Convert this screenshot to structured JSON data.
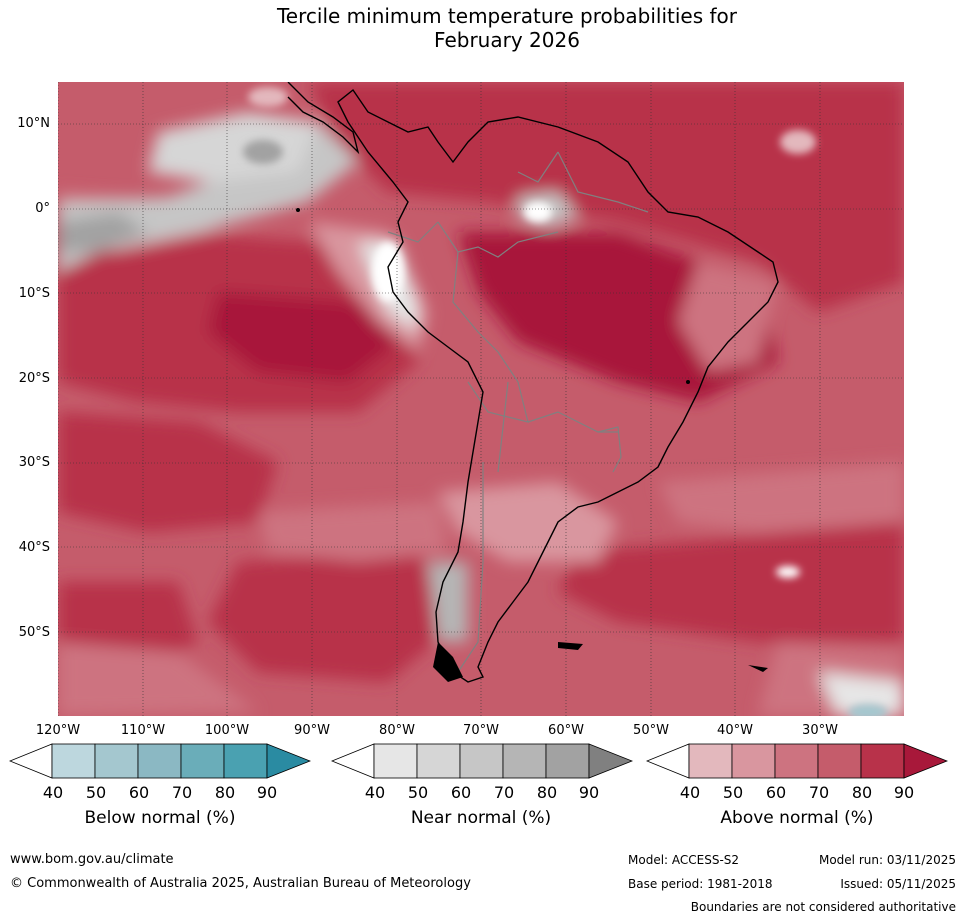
{
  "title": {
    "line1": "Tercile minimum temperature probabilities for",
    "line2": "February 2026"
  },
  "map": {
    "lat_labels": [
      "10°N",
      "0°",
      "10°S",
      "20°S",
      "30°S",
      "40°S",
      "50°S"
    ],
    "lon_labels": [
      "120°W",
      "110°W",
      "100°W",
      "90°W",
      "80°W",
      "70°W",
      "60°W",
      "50°W",
      "40°W",
      "30°W"
    ]
  },
  "legend": {
    "below": {
      "title": "Below normal (%)",
      "ticks": [
        "40",
        "50",
        "60",
        "70",
        "80",
        "90"
      ],
      "colors": [
        "#ffffff",
        "#bdd7de",
        "#a4c7cf",
        "#8bb8c3",
        "#6aadb9",
        "#4aa1b1",
        "#2a8ba2"
      ]
    },
    "near": {
      "title": "Near normal (%)",
      "ticks": [
        "40",
        "50",
        "60",
        "70",
        "80",
        "90"
      ],
      "colors": [
        "#ffffff",
        "#e6e6e6",
        "#d6d6d6",
        "#c6c6c6",
        "#b5b5b5",
        "#a2a2a2",
        "#808080"
      ]
    },
    "above": {
      "title": "Above normal (%)",
      "ticks": [
        "40",
        "50",
        "60",
        "70",
        "80",
        "90"
      ],
      "colors": [
        "#ffffff",
        "#e3b8bd",
        "#d9969f",
        "#cd7380",
        "#c55c6b",
        "#b8324a",
        "#a8183a"
      ]
    }
  },
  "footer": {
    "website": "www.bom.gov.au/climate",
    "copyright": "© Commonwealth of Australia 2025, Australian Bureau of Meteorology",
    "model": "Model: ACCESS-S2",
    "base_period": "Base period: 1981-2018",
    "model_run": "Model run: 03/11/2025",
    "issued": "Issued: 05/11/2025",
    "disclaimer": "Boundaries are not considered authoritative"
  }
}
